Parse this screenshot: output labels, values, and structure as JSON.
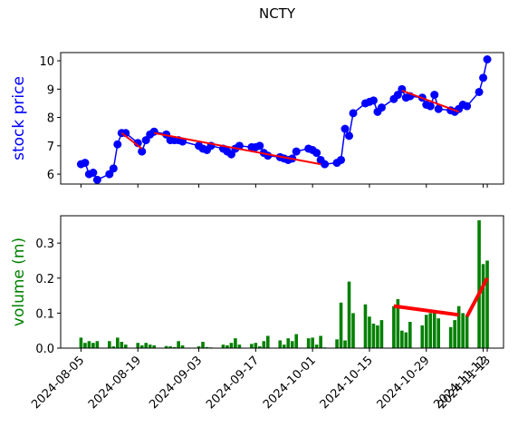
{
  "chart_data": [
    {
      "type": "line",
      "title": "NCTY",
      "ylabel": "stock price",
      "color": "#0000ff",
      "ylabel_color": "#0000ff",
      "x": [
        "2024-08-05",
        "2024-08-06",
        "2024-08-07",
        "2024-08-08",
        "2024-08-09",
        "2024-08-12",
        "2024-08-13",
        "2024-08-14",
        "2024-08-15",
        "2024-08-16",
        "2024-08-19",
        "2024-08-20",
        "2024-08-21",
        "2024-08-22",
        "2024-08-23",
        "2024-08-26",
        "2024-08-27",
        "2024-08-28",
        "2024-08-29",
        "2024-08-30",
        "2024-09-03",
        "2024-09-04",
        "2024-09-05",
        "2024-09-06",
        "2024-09-09",
        "2024-09-10",
        "2024-09-11",
        "2024-09-12",
        "2024-09-13",
        "2024-09-16",
        "2024-09-17",
        "2024-09-18",
        "2024-09-19",
        "2024-09-20",
        "2024-09-23",
        "2024-09-24",
        "2024-09-25",
        "2024-09-26",
        "2024-09-27",
        "2024-09-30",
        "2024-10-01",
        "2024-10-02",
        "2024-10-03",
        "2024-10-04",
        "2024-10-07",
        "2024-10-08",
        "2024-10-09",
        "2024-10-10",
        "2024-10-11",
        "2024-10-14",
        "2024-10-15",
        "2024-10-16",
        "2024-10-17",
        "2024-10-18",
        "2024-10-21",
        "2024-10-22",
        "2024-10-23",
        "2024-10-24",
        "2024-10-25",
        "2024-10-28",
        "2024-10-29",
        "2024-10-30",
        "2024-10-31",
        "2024-11-01",
        "2024-11-04",
        "2024-11-05",
        "2024-11-06",
        "2024-11-07",
        "2024-11-08",
        "2024-11-11",
        "2024-11-12",
        "2024-11-13"
      ],
      "values": [
        6.35,
        6.4,
        6.0,
        6.05,
        5.8,
        6.0,
        6.2,
        7.05,
        7.45,
        7.45,
        7.1,
        6.8,
        7.2,
        7.4,
        7.5,
        7.4,
        7.2,
        7.2,
        7.2,
        7.15,
        7.0,
        6.9,
        6.85,
        7.0,
        6.9,
        6.8,
        6.7,
        6.9,
        7.0,
        6.95,
        6.95,
        7.0,
        6.75,
        6.65,
        6.6,
        6.55,
        6.5,
        6.55,
        6.8,
        6.9,
        6.85,
        6.75,
        6.5,
        6.35,
        6.4,
        6.5,
        7.6,
        7.35,
        8.15,
        8.5,
        8.55,
        8.6,
        8.2,
        8.35,
        8.65,
        8.8,
        9.0,
        8.7,
        8.75,
        8.7,
        8.45,
        8.4,
        8.8,
        8.3,
        8.25,
        8.2,
        8.3,
        8.45,
        8.4,
        8.9,
        9.4,
        10.05
      ],
      "ylim": [
        5.65,
        10.29
      ],
      "yticks": [
        6,
        7,
        8,
        9,
        10
      ],
      "trend_color": "#ff0000",
      "trend_lines": [
        {
          "x": [
            "2024-08-15",
            "2024-08-20"
          ],
          "y": [
            7.45,
            6.9
          ]
        },
        {
          "x": [
            "2024-08-23",
            "2024-10-03"
          ],
          "y": [
            7.45,
            6.35
          ]
        },
        {
          "x": [
            "2024-10-23",
            "2024-11-06"
          ],
          "y": [
            8.95,
            8.2
          ]
        }
      ]
    },
    {
      "type": "bar",
      "ylabel": "volume (m)",
      "color": "#008000",
      "ylabel_color": "#008000",
      "x": [
        "2024-08-05",
        "2024-08-06",
        "2024-08-07",
        "2024-08-08",
        "2024-08-09",
        "2024-08-12",
        "2024-08-13",
        "2024-08-14",
        "2024-08-15",
        "2024-08-16",
        "2024-08-19",
        "2024-08-20",
        "2024-08-21",
        "2024-08-22",
        "2024-08-23",
        "2024-08-26",
        "2024-08-27",
        "2024-08-28",
        "2024-08-29",
        "2024-08-30",
        "2024-09-03",
        "2024-09-04",
        "2024-09-05",
        "2024-09-06",
        "2024-09-09",
        "2024-09-10",
        "2024-09-11",
        "2024-09-12",
        "2024-09-13",
        "2024-09-16",
        "2024-09-17",
        "2024-09-18",
        "2024-09-19",
        "2024-09-20",
        "2024-09-23",
        "2024-09-24",
        "2024-09-25",
        "2024-09-26",
        "2024-09-27",
        "2024-09-30",
        "2024-10-01",
        "2024-10-02",
        "2024-10-03",
        "2024-10-04",
        "2024-10-07",
        "2024-10-08",
        "2024-10-09",
        "2024-10-10",
        "2024-10-11",
        "2024-10-14",
        "2024-10-15",
        "2024-10-16",
        "2024-10-17",
        "2024-10-18",
        "2024-10-21",
        "2024-10-22",
        "2024-10-23",
        "2024-10-24",
        "2024-10-25",
        "2024-10-28",
        "2024-10-29",
        "2024-10-30",
        "2024-10-31",
        "2024-11-01",
        "2024-11-04",
        "2024-11-05",
        "2024-11-06",
        "2024-11-07",
        "2024-11-08",
        "2024-11-11",
        "2024-11-12",
        "2024-11-13"
      ],
      "values": [
        0.03,
        0.015,
        0.02,
        0.015,
        0.02,
        0.02,
        0.005,
        0.03,
        0.018,
        0.01,
        0.015,
        0.008,
        0.015,
        0.01,
        0.008,
        0.006,
        0.005,
        0.003,
        0.02,
        0.008,
        0.005,
        0.018,
        0.003,
        0.002,
        0.01,
        0.008,
        0.015,
        0.028,
        0.01,
        0.012,
        0.015,
        0.005,
        0.02,
        0.035,
        0.022,
        0.01,
        0.028,
        0.02,
        0.04,
        0.028,
        0.03,
        0.01,
        0.035,
        0.002,
        0.025,
        0.13,
        0.022,
        0.19,
        0.1,
        0.125,
        0.09,
        0.07,
        0.065,
        0.08,
        0.12,
        0.14,
        0.05,
        0.045,
        0.075,
        0.065,
        0.095,
        0.1,
        0.1,
        0.085,
        0.06,
        0.08,
        0.12,
        0.1,
        0.095,
        0.365,
        0.24,
        0.25
      ],
      "ylim": [
        0,
        0.378
      ],
      "yticks": [
        {
          "value": 0,
          "label": "0.0"
        },
        0.1,
        0.2,
        0.3
      ],
      "xlim": [
        "2024-07-31",
        "2024-11-17"
      ],
      "xticks": [
        "2024-08-05",
        "2024-08-19",
        "2024-09-03",
        "2024-09-17",
        "2024-10-01",
        "2024-10-15",
        "2024-10-29",
        "2024-11-12",
        "2024-11-13"
      ],
      "trend_color": "#ff0000",
      "trend_lines": [
        {
          "x": [
            "2024-10-21",
            "2024-11-06"
          ],
          "y": [
            0.12,
            0.095
          ]
        },
        {
          "x": [
            "2024-11-08",
            "2024-11-13"
          ],
          "y": [
            0.09,
            0.2
          ]
        }
      ]
    }
  ]
}
